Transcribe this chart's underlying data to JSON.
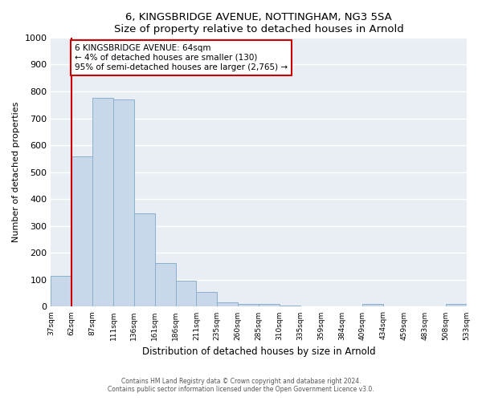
{
  "title": "6, KINGSBRIDGE AVENUE, NOTTINGHAM, NG3 5SA",
  "subtitle": "Size of property relative to detached houses in Arnold",
  "bar_values": [
    115,
    560,
    775,
    770,
    348,
    163,
    98,
    55,
    15,
    10,
    10,
    5,
    0,
    0,
    0,
    10,
    0,
    0,
    0,
    10
  ],
  "bin_labels": [
    "37sqm",
    "62sqm",
    "87sqm",
    "111sqm",
    "136sqm",
    "161sqm",
    "186sqm",
    "211sqm",
    "235sqm",
    "260sqm",
    "285sqm",
    "310sqm",
    "335sqm",
    "359sqm",
    "384sqm",
    "409sqm",
    "434sqm",
    "459sqm",
    "483sqm",
    "508sqm",
    "533sqm"
  ],
  "bar_color": "#c8d8ea",
  "bar_edge_color": "#8ab0cc",
  "vline_x": 1,
  "vline_color": "#cc0000",
  "annotation_text": "6 KINGSBRIDGE AVENUE: 64sqm\n← 4% of detached houses are smaller (130)\n95% of semi-detached houses are larger (2,765) →",
  "annotation_box_color": "#ffffff",
  "annotation_box_edge_color": "#cc0000",
  "ylabel": "Number of detached properties",
  "xlabel": "Distribution of detached houses by size in Arnold",
  "ylim": [
    0,
    1000
  ],
  "yticks": [
    0,
    100,
    200,
    300,
    400,
    500,
    600,
    700,
    800,
    900,
    1000
  ],
  "footer_line1": "Contains HM Land Registry data © Crown copyright and database right 2024.",
  "footer_line2": "Contains public sector information licensed under the Open Government Licence v3.0.",
  "plot_bg_color": "#e8eef4",
  "fig_bg_color": "#ffffff",
  "grid_color": "#ffffff"
}
